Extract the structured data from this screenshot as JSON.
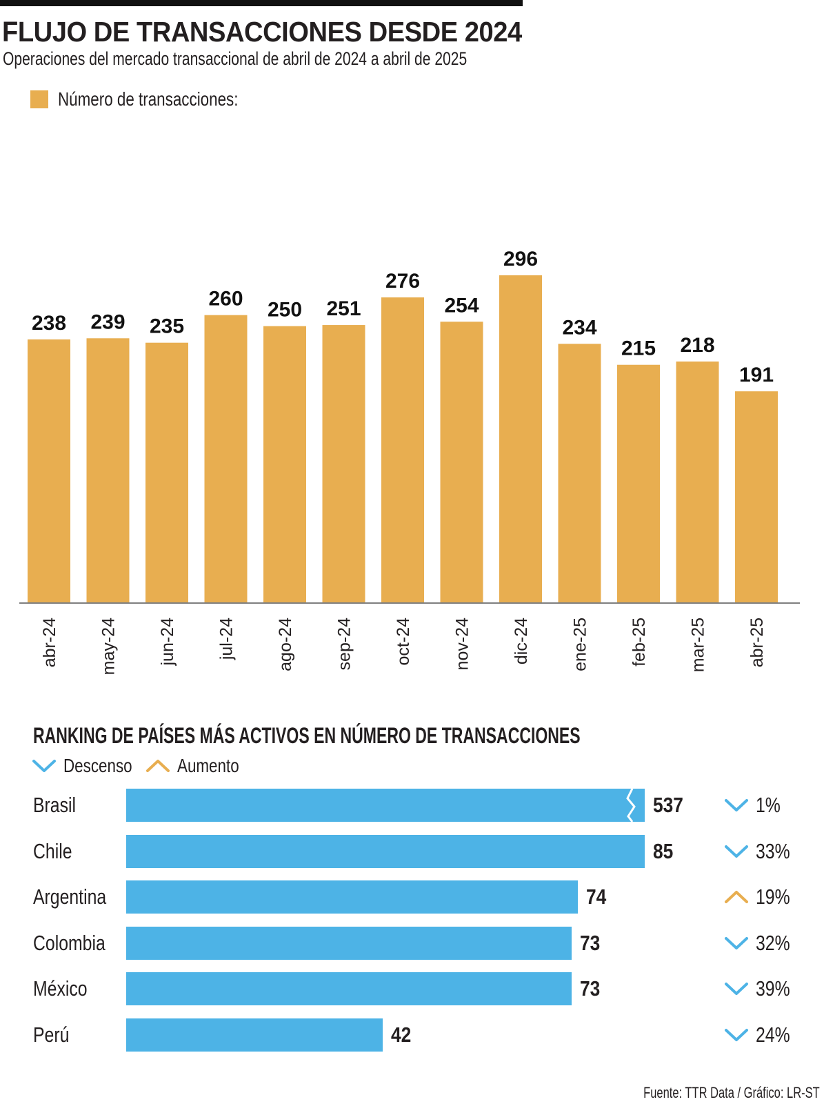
{
  "title": "FLUJO DE TRANSACCIONES DESDE 2024",
  "subtitle": "Operaciones del mercado transaccional de abril de 2024 a abril de 2025",
  "legend_label": "Número de transacciones:",
  "colors": {
    "bar": "#e8ae50",
    "ranking_bar": "#4db3e6",
    "descenso": "#4db3e6",
    "aumento": "#e8ae50"
  },
  "chart_data": [
    {
      "type": "bar",
      "title": "FLUJO DE TRANSACCIONES DESDE 2024",
      "subtitle": "Operaciones del mercado transaccional de abril de 2024 a abril de 2025",
      "categories": [
        "abr-24",
        "may-24",
        "jun-24",
        "jul-24",
        "ago-24",
        "sep-24",
        "oct-24",
        "nov-24",
        "dic-24",
        "ene-25",
        "feb-25",
        "mar-25",
        "abr-25"
      ],
      "series": [
        {
          "name": "Número de transacciones:",
          "values": [
            238,
            239,
            235,
            260,
            250,
            251,
            276,
            254,
            296,
            234,
            215,
            218,
            191
          ]
        }
      ],
      "ylim": [
        0,
        296
      ],
      "grid": false,
      "legend": "top-left"
    },
    {
      "type": "bar",
      "orientation": "horizontal",
      "title": "RANKING DE PAÍSES MÁS ACTIVOS EN NÚMERO DE TRANSACCIONES",
      "categories": [
        "Brasil",
        "Chile",
        "Argentina",
        "Colombia",
        "México",
        "Perú"
      ],
      "values": [
        537,
        85,
        74,
        73,
        73,
        42
      ],
      "changes": [
        {
          "direction": "Descenso",
          "pct": "1%"
        },
        {
          "direction": "Descenso",
          "pct": "33%"
        },
        {
          "direction": "Aumento",
          "pct": "19%"
        },
        {
          "direction": "Descenso",
          "pct": "32%"
        },
        {
          "direction": "Descenso",
          "pct": "39%"
        },
        {
          "direction": "Descenso",
          "pct": "24%"
        }
      ],
      "axis_break": "Brasil",
      "legend": [
        "Descenso",
        "Aumento"
      ]
    }
  ],
  "ranking": {
    "title": "RANKING DE PAÍSES MÁS ACTIVOS EN NÚMERO DE TRANSACCIONES",
    "legend": {
      "down_label": "Descenso",
      "up_label": "Aumento"
    }
  },
  "source": "Fuente: TTR Data / Gráfico: LR-ST"
}
